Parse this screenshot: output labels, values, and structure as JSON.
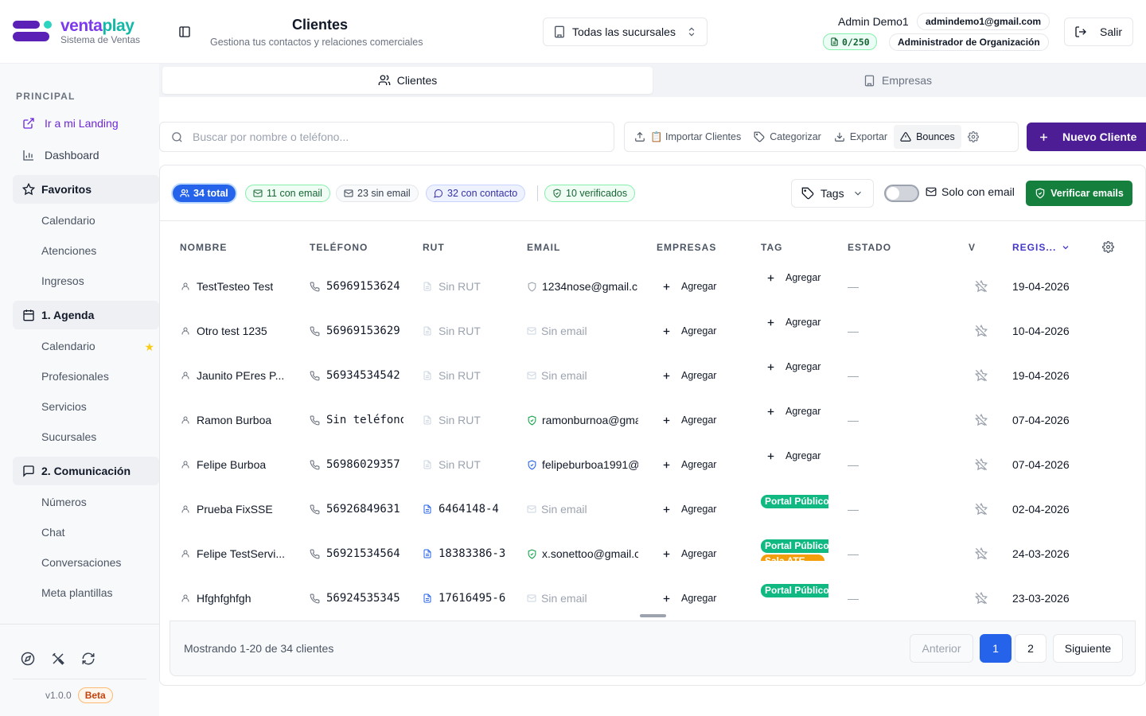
{
  "app": {
    "brand_part1": "venta",
    "brand_part2": "play",
    "subtitle": "Sistema de Ventas"
  },
  "sidebar": {
    "section_label": "PRINCIPAL",
    "landing_link": "Ir a mi Landing",
    "dashboard": "Dashboard",
    "groups": [
      {
        "label": "Favoritos",
        "items": [
          "Calendario",
          "Atenciones",
          "Ingresos"
        ]
      },
      {
        "label": "1. Agenda",
        "items": [
          "Calendario",
          "Profesionales",
          "Servicios",
          "Sucursales"
        ]
      },
      {
        "label": "2. Comunicación",
        "items": [
          "Números",
          "Chat",
          "Conversaciones",
          "Meta plantillas"
        ]
      }
    ],
    "version": "v1.0.0",
    "beta": "Beta"
  },
  "header": {
    "title": "Clientes",
    "subtitle": "Gestiona tus contactos y relaciones comerciales",
    "branch": "Todas las sucursales",
    "user_name": "Admin Demo1",
    "user_email": "admindemo1@gmail.com",
    "quota": "0/250",
    "role": "Administrador de Organización",
    "logout": "Salir"
  },
  "tabs": [
    {
      "label": "Clientes"
    },
    {
      "label": "Empresas"
    }
  ],
  "toolbar": {
    "search_placeholder": "Buscar por nombre o teléfono...",
    "import": "📋 Importar Clientes",
    "categorize": "Categorizar",
    "export": "Exportar",
    "bounces": "Bounces",
    "new_client": "Nuevo Cliente"
  },
  "filters": {
    "total": "34 total",
    "with_email": "11 con email",
    "without_email": "23 sin email",
    "with_contact": "32 con contacto",
    "verified": "10 verificados",
    "tags": "Tags",
    "only_email": "Solo con email",
    "only_email_on": false,
    "verify": "Verificar emails"
  },
  "table": {
    "headers": {
      "name": "NOMBRE",
      "phone": "TELÉFONO",
      "rut": "RUT",
      "email": "EMAIL",
      "companies": "EMPRESAS",
      "tag": "TAG",
      "state": "ESTADO",
      "v": "V",
      "registered": "REGIS..."
    },
    "add_label": "Agregar",
    "rows": [
      {
        "name": "TestTesteo Test",
        "phone": "56969153624",
        "rut": "Sin RUT",
        "email": "1234nose@gmail.c",
        "email_status": "unverified",
        "tags": [],
        "state": "—",
        "date": "19-04-2026"
      },
      {
        "name": "Otro test 1235",
        "phone": "56969153629",
        "rut": "Sin RUT",
        "email": "Sin email",
        "email_status": "none",
        "tags": [],
        "state": "—",
        "date": "10-04-2026"
      },
      {
        "name": "Jaunito PEres P...",
        "phone": "56934534542",
        "rut": "Sin RUT",
        "email": "Sin email",
        "email_status": "none",
        "tags": [],
        "state": "—",
        "date": "19-04-2026"
      },
      {
        "name": "Ramon Burboa",
        "phone": "Sin teléfono",
        "rut": "Sin RUT",
        "email": "ramonburnoa@gmai",
        "email_status": "verified",
        "tags": [],
        "state": "—",
        "date": "07-04-2026"
      },
      {
        "name": "Felipe Burboa",
        "phone": "56986029357",
        "rut": "Sin RUT",
        "email": "felipeburboa1991@",
        "email_status": "pending",
        "tags": [],
        "state": "—",
        "date": "07-04-2026"
      },
      {
        "name": "Prueba FixSSE",
        "phone": "56926849631",
        "rut": "6464148-4",
        "email": "Sin email",
        "email_status": "none",
        "tags": [
          "Portal Público"
        ],
        "state": "—",
        "date": "02-04-2026"
      },
      {
        "name": "Felipe TestServi...",
        "phone": "56921534564",
        "rut": "18383386-3",
        "email": "x.sonettoo@gmail.c",
        "email_status": "verified",
        "tags": [
          "Portal Público",
          "Sala ATE"
        ],
        "state": "—",
        "date": "24-03-2026"
      },
      {
        "name": "Hfghfghfgh",
        "phone": "56924535345",
        "rut": "17616495-6",
        "email": "Sin email",
        "email_status": "none",
        "tags": [
          "Portal Público"
        ],
        "state": "—",
        "date": "23-03-2026"
      }
    ]
  },
  "pagination": {
    "showing": "Mostrando 1-20 de 34 clientes",
    "prev": "Anterior",
    "pages": [
      "1",
      "2"
    ],
    "current": "1",
    "next": "Siguiente"
  },
  "colors": {
    "primary": "#4c1d95",
    "accent": "#2563eb",
    "success": "#15803d",
    "tag_green": "#10b981",
    "tag_orange": "#f59e0b"
  }
}
